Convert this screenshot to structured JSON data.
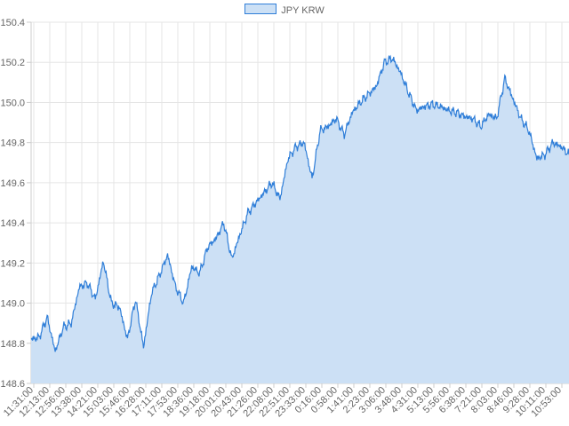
{
  "legend": {
    "label": "JPY KRW",
    "fill": "#cce0f5",
    "stroke": "#2f7ed8"
  },
  "chart_data": {
    "type": "area",
    "title": "",
    "xlabel": "",
    "ylabel": "",
    "ylim": [
      148.6,
      150.4
    ],
    "grid": true,
    "legend_position": "top-center",
    "y_ticks": [
      "148.6",
      "148.8",
      "149.0",
      "149.2",
      "149.4",
      "149.6",
      "149.8",
      "150.0",
      "150.2",
      "150.4"
    ],
    "x_ticks": [
      "11:31:00",
      "12:13:00",
      "12:56:00",
      "13:38:00",
      "14:21:00",
      "15:03:00",
      "15:46:00",
      "16:28:00",
      "17:11:00",
      "17:53:00",
      "18:36:00",
      "19:18:00",
      "20:01:00",
      "20:43:00",
      "21:26:00",
      "22:08:00",
      "22:51:00",
      "23:33:00",
      "0:16:00",
      "0:58:00",
      "1:41:00",
      "2:23:00",
      "3:06:00",
      "3:48:00",
      "4:31:00",
      "5:13:00",
      "5:56:00",
      "6:38:00",
      "7:21:00",
      "8:03:00",
      "8:46:00",
      "9:28:00",
      "10:11:00",
      "10:53:00"
    ],
    "series": [
      {
        "name": "JPY KRW",
        "x": [
          "11:31:00",
          "11:52:00",
          "12:13:00",
          "12:34:00",
          "12:56:00",
          "13:17:00",
          "13:38:00",
          "13:59:00",
          "14:21:00",
          "14:42:00",
          "15:03:00",
          "15:24:00",
          "15:46:00",
          "16:07:00",
          "16:28:00",
          "16:49:00",
          "17:11:00",
          "17:32:00",
          "17:53:00",
          "18:14:00",
          "18:36:00",
          "18:57:00",
          "19:18:00",
          "19:39:00",
          "20:01:00",
          "20:22:00",
          "20:43:00",
          "21:04:00",
          "21:26:00",
          "21:47:00",
          "22:08:00",
          "22:29:00",
          "22:51:00",
          "23:12:00",
          "23:33:00",
          "23:54:00",
          "0:16:00",
          "0:37:00",
          "0:58:00",
          "1:19:00",
          "1:41:00",
          "2:02:00",
          "2:23:00",
          "2:44:00",
          "3:06:00",
          "3:27:00",
          "3:48:00",
          "4:09:00",
          "4:31:00",
          "4:52:00",
          "5:13:00",
          "5:34:00",
          "5:56:00",
          "6:17:00",
          "6:38:00",
          "6:59:00",
          "7:21:00",
          "7:42:00",
          "8:03:00",
          "8:24:00",
          "8:46:00",
          "9:07:00",
          "9:28:00",
          "9:49:00",
          "10:11:00",
          "10:32:00",
          "10:53:00",
          "11:14:00"
        ],
        "values": [
          148.82,
          148.83,
          148.93,
          148.76,
          148.88,
          148.9,
          149.08,
          149.1,
          149.02,
          149.21,
          149.0,
          148.98,
          148.82,
          149.02,
          148.78,
          149.05,
          149.14,
          149.24,
          149.08,
          149.0,
          149.18,
          149.15,
          149.28,
          149.32,
          149.4,
          149.22,
          149.34,
          149.45,
          149.5,
          149.55,
          149.6,
          149.52,
          149.72,
          149.78,
          149.8,
          149.62,
          149.86,
          149.88,
          149.92,
          149.84,
          149.95,
          150.0,
          150.04,
          150.08,
          150.2,
          150.22,
          150.15,
          150.05,
          149.96,
          149.98,
          149.99,
          149.98,
          149.96,
          149.95,
          149.93,
          149.92,
          149.88,
          149.94,
          149.92,
          150.12,
          150.02,
          149.92,
          149.86,
          149.72,
          149.74,
          149.8,
          149.78,
          149.74
        ]
      }
    ]
  }
}
